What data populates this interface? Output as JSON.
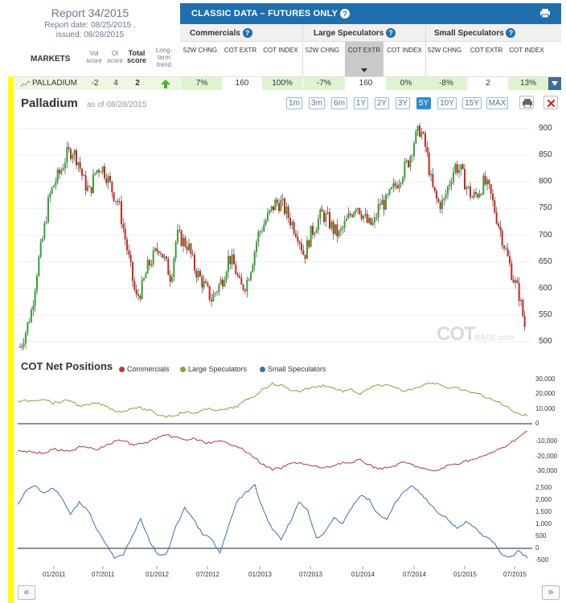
{
  "report": {
    "title": "Report 34/2015",
    "report_date": "Report date: 08/25/2015 ,",
    "issued": "issued: 08/28/2015"
  },
  "table_header": {
    "markets": "MARKETS",
    "vol_score": "Vol score",
    "oi_score": "OI score",
    "total_score": "Total score",
    "long_term_trend": "Long-term trend",
    "classic_title": "CLASSIC DATA – FUTURES ONLY",
    "groups": [
      "Commercials",
      "Large Speculators",
      "Small Speculators"
    ],
    "columns": [
      "52W CHNG",
      "COT EXTR",
      "COT INDEX",
      "52W CHNG",
      "COT EXTR",
      "COT INDEX",
      "52W CHNG",
      "COT EXTR",
      "COT INDEX"
    ]
  },
  "row": {
    "market": "PALLADIUM",
    "vol": "-2",
    "oi": "4",
    "total": "2",
    "values": [
      "7%",
      "160",
      "100%",
      "-7%",
      "160",
      "0%",
      "-8%",
      "2",
      "13%"
    ]
  },
  "chart": {
    "title": "Palladium",
    "as_of": "as of 08/28/2015",
    "ranges": [
      "1m",
      "3m",
      "6m",
      "1Y",
      "2Y",
      "3Y",
      "5Y",
      "10Y",
      "15Y",
      "MAX"
    ],
    "active_range": "5Y",
    "watermark": "COT",
    "watermark_small": "BASE.com",
    "cot_title": "COT Net Positions",
    "legend": [
      "Commercials",
      "Large Speculators",
      "Small Speculators"
    ],
    "colors": {
      "commercials": "#b03a3a",
      "large": "#7aa83a",
      "small": "#3a6fb0",
      "up": "#2ea52e",
      "down": "#d42020"
    }
  },
  "chart_data": {
    "type": "line",
    "price_axis": [
      900,
      850,
      800,
      750,
      700,
      650,
      600,
      550,
      500
    ],
    "large_axis": [
      "30,000",
      "20,000",
      "10,000",
      "0"
    ],
    "comm_axis": [
      "-10,000",
      "-20,000",
      "-30,000"
    ],
    "small_axis": [
      "2,500",
      "2,000",
      "1,500",
      "1,000",
      "500",
      "0",
      "-500"
    ],
    "x_labels": [
      "01/2011",
      "07/2011",
      "01/2012",
      "07/2012",
      "01/2013",
      "07/2013",
      "01/2014",
      "07/2014",
      "01/2015",
      "07/2015"
    ],
    "price_series": [
      490,
      520,
      560,
      640,
      700,
      770,
      800,
      820,
      850,
      860,
      840,
      800,
      780,
      820,
      830,
      810,
      780,
      760,
      700,
      640,
      580,
      600,
      640,
      660,
      680,
      650,
      620,
      700,
      690,
      680,
      640,
      620,
      600,
      580,
      600,
      620,
      660,
      640,
      600,
      610,
      650,
      700,
      720,
      740,
      760,
      760,
      740,
      720,
      700,
      660,
      700,
      720,
      740,
      730,
      710,
      700,
      720,
      740,
      760,
      740,
      720,
      720,
      760,
      760,
      780,
      800,
      820,
      840,
      880,
      900,
      860,
      790,
      760,
      760,
      800,
      830,
      820,
      790,
      770,
      780,
      800,
      780,
      740,
      700,
      660,
      620,
      590,
      530
    ],
    "large_series": [
      15000,
      15500,
      16000,
      17000,
      14000,
      15000,
      16000,
      12000,
      12500,
      14000,
      12000,
      9000,
      8000,
      11000,
      10500,
      9000,
      6000,
      5000,
      6000,
      8000,
      7000,
      9000,
      10000,
      9000,
      10000,
      12000,
      16000,
      19000,
      24000,
      27000,
      26000,
      23000,
      22000,
      24000,
      25000,
      26000,
      24000,
      22000,
      23000,
      20000,
      24000,
      26000,
      26000,
      24000,
      22000,
      24000,
      26000,
      28000,
      27000,
      24000,
      24000,
      22000,
      21000,
      19000,
      16000,
      14000,
      10000,
      7000,
      5000
    ],
    "comm_series": [
      -16000,
      -16500,
      -17000,
      -18000,
      -15000,
      -16000,
      -17000,
      -13000,
      -13500,
      -15000,
      -13000,
      -10000,
      -9000,
      -12000,
      -11500,
      -10000,
      -7000,
      -6000,
      -7000,
      -9000,
      -8000,
      -10000,
      -11000,
      -10000,
      -11000,
      -13000,
      -17000,
      -21000,
      -26000,
      -29000,
      -28000,
      -25000,
      -24000,
      -26000,
      -27000,
      -28000,
      -26000,
      -24000,
      -25000,
      -22000,
      -26000,
      -28000,
      -28000,
      -26000,
      -24000,
      -26000,
      -28000,
      -30000,
      -29000,
      -26000,
      -25000,
      -23000,
      -22000,
      -20000,
      -17000,
      -15000,
      -11000,
      -7000,
      -3000
    ],
    "small_series": [
      1800,
      2400,
      2600,
      2300,
      2500,
      2100,
      1400,
      1900,
      1600,
      800,
      200,
      -400,
      -300,
      500,
      1200,
      300,
      -300,
      -200,
      900,
      1700,
      1200,
      600,
      400,
      -200,
      900,
      2000,
      2300,
      2600,
      1500,
      800,
      400,
      1100,
      1900,
      1600,
      400,
      700,
      1300,
      1000,
      1700,
      2200,
      2000,
      1400,
      1200,
      1900,
      2400,
      2600,
      2200,
      1800,
      1400,
      1200,
      800,
      1100,
      900,
      500,
      300,
      -200,
      -400,
      -100,
      -400
    ]
  }
}
